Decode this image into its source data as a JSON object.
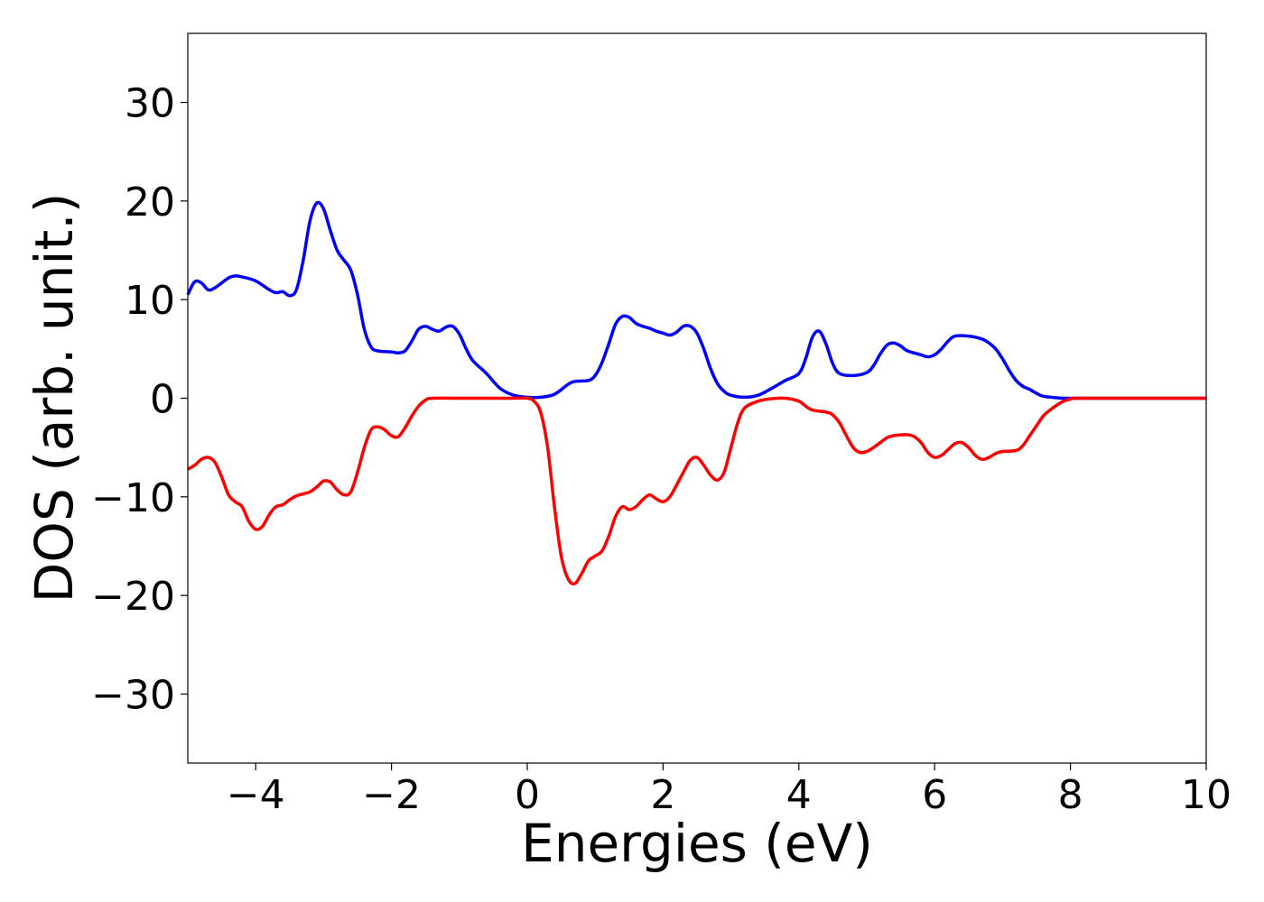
{
  "chart_data": {
    "type": "line",
    "xlabel": "Energies (eV)",
    "ylabel": "DOS (arb. unit.)",
    "xlim": [
      -5,
      10
    ],
    "ylim": [
      -37,
      37
    ],
    "grid": false,
    "x_ticks": [
      {
        "value": -4,
        "label": "−4"
      },
      {
        "value": -2,
        "label": "−2"
      },
      {
        "value": 0,
        "label": "0"
      },
      {
        "value": 2,
        "label": "2"
      },
      {
        "value": 4,
        "label": "4"
      },
      {
        "value": 6,
        "label": "6"
      },
      {
        "value": 8,
        "label": "8"
      },
      {
        "value": 10,
        "label": "10"
      }
    ],
    "y_ticks": [
      {
        "value": 30,
        "label": "30"
      },
      {
        "value": 20,
        "label": "20"
      },
      {
        "value": 10,
        "label": "10"
      },
      {
        "value": 0,
        "label": "0"
      },
      {
        "value": -10,
        "label": "−10"
      },
      {
        "value": -20,
        "label": "−20"
      },
      {
        "value": -30,
        "label": "−30"
      }
    ],
    "series": [
      {
        "color": "#0000ff",
        "points": [
          [
            -5.0,
            10.5
          ],
          [
            -4.9,
            11.8
          ],
          [
            -4.8,
            11.7
          ],
          [
            -4.7,
            11.0
          ],
          [
            -4.6,
            11.2
          ],
          [
            -4.4,
            12.2
          ],
          [
            -4.3,
            12.4
          ],
          [
            -4.2,
            12.3
          ],
          [
            -4.0,
            11.9
          ],
          [
            -3.8,
            11.0
          ],
          [
            -3.7,
            10.7
          ],
          [
            -3.6,
            10.8
          ],
          [
            -3.5,
            10.4
          ],
          [
            -3.4,
            11.0
          ],
          [
            -3.3,
            14.0
          ],
          [
            -3.2,
            18.0
          ],
          [
            -3.1,
            19.8
          ],
          [
            -3.0,
            19.2
          ],
          [
            -2.9,
            17.0
          ],
          [
            -2.8,
            15.0
          ],
          [
            -2.7,
            14.0
          ],
          [
            -2.6,
            13.0
          ],
          [
            -2.5,
            10.5
          ],
          [
            -2.4,
            7.0
          ],
          [
            -2.3,
            5.2
          ],
          [
            -2.2,
            4.8
          ],
          [
            -2.0,
            4.7
          ],
          [
            -1.9,
            4.6
          ],
          [
            -1.8,
            4.8
          ],
          [
            -1.7,
            5.8
          ],
          [
            -1.6,
            7.0
          ],
          [
            -1.5,
            7.3
          ],
          [
            -1.4,
            7.0
          ],
          [
            -1.3,
            6.8
          ],
          [
            -1.2,
            7.2
          ],
          [
            -1.1,
            7.3
          ],
          [
            -1.0,
            6.5
          ],
          [
            -0.9,
            5.0
          ],
          [
            -0.8,
            3.8
          ],
          [
            -0.6,
            2.5
          ],
          [
            -0.4,
            1.0
          ],
          [
            -0.2,
            0.3
          ],
          [
            0.0,
            0.1
          ],
          [
            0.2,
            0.1
          ],
          [
            0.4,
            0.4
          ],
          [
            0.6,
            1.4
          ],
          [
            0.7,
            1.7
          ],
          [
            0.9,
            1.8
          ],
          [
            1.0,
            2.3
          ],
          [
            1.1,
            3.6
          ],
          [
            1.2,
            5.5
          ],
          [
            1.3,
            7.5
          ],
          [
            1.4,
            8.3
          ],
          [
            1.5,
            8.2
          ],
          [
            1.6,
            7.6
          ],
          [
            1.7,
            7.3
          ],
          [
            1.8,
            7.1
          ],
          [
            1.9,
            6.8
          ],
          [
            2.0,
            6.6
          ],
          [
            2.1,
            6.4
          ],
          [
            2.2,
            6.7
          ],
          [
            2.3,
            7.3
          ],
          [
            2.4,
            7.3
          ],
          [
            2.5,
            6.6
          ],
          [
            2.6,
            5.0
          ],
          [
            2.7,
            3.0
          ],
          [
            2.8,
            1.5
          ],
          [
            2.9,
            0.7
          ],
          [
            3.0,
            0.3
          ],
          [
            3.2,
            0.1
          ],
          [
            3.4,
            0.3
          ],
          [
            3.6,
            1.0
          ],
          [
            3.8,
            1.8
          ],
          [
            4.0,
            2.5
          ],
          [
            4.1,
            4.0
          ],
          [
            4.2,
            6.2
          ],
          [
            4.3,
            6.8
          ],
          [
            4.4,
            5.5
          ],
          [
            4.5,
            3.5
          ],
          [
            4.6,
            2.5
          ],
          [
            4.8,
            2.3
          ],
          [
            5.0,
            2.6
          ],
          [
            5.1,
            3.3
          ],
          [
            5.2,
            4.5
          ],
          [
            5.3,
            5.4
          ],
          [
            5.4,
            5.6
          ],
          [
            5.5,
            5.3
          ],
          [
            5.6,
            4.8
          ],
          [
            5.8,
            4.4
          ],
          [
            5.9,
            4.2
          ],
          [
            6.0,
            4.4
          ],
          [
            6.1,
            5.0
          ],
          [
            6.2,
            5.8
          ],
          [
            6.3,
            6.3
          ],
          [
            6.5,
            6.3
          ],
          [
            6.7,
            6.0
          ],
          [
            6.8,
            5.6
          ],
          [
            6.9,
            5.0
          ],
          [
            7.0,
            4.0
          ],
          [
            7.1,
            2.8
          ],
          [
            7.2,
            1.8
          ],
          [
            7.3,
            1.2
          ],
          [
            7.4,
            0.9
          ],
          [
            7.5,
            0.5
          ],
          [
            7.6,
            0.2
          ],
          [
            7.8,
            0.05
          ],
          [
            8.0,
            0.0
          ],
          [
            9.0,
            0.0
          ],
          [
            10.0,
            0.0
          ]
        ]
      },
      {
        "color": "#ff0000",
        "points": [
          [
            -5.0,
            -7.2
          ],
          [
            -4.9,
            -6.8
          ],
          [
            -4.8,
            -6.2
          ],
          [
            -4.7,
            -6.0
          ],
          [
            -4.6,
            -6.5
          ],
          [
            -4.5,
            -8.0
          ],
          [
            -4.4,
            -9.8
          ],
          [
            -4.3,
            -10.5
          ],
          [
            -4.2,
            -11.0
          ],
          [
            -4.1,
            -12.5
          ],
          [
            -4.0,
            -13.3
          ],
          [
            -3.9,
            -13.0
          ],
          [
            -3.8,
            -11.8
          ],
          [
            -3.7,
            -11.0
          ],
          [
            -3.6,
            -10.8
          ],
          [
            -3.5,
            -10.3
          ],
          [
            -3.4,
            -9.9
          ],
          [
            -3.3,
            -9.7
          ],
          [
            -3.2,
            -9.5
          ],
          [
            -3.1,
            -9.0
          ],
          [
            -3.0,
            -8.4
          ],
          [
            -2.9,
            -8.5
          ],
          [
            -2.8,
            -9.3
          ],
          [
            -2.7,
            -9.8
          ],
          [
            -2.6,
            -9.5
          ],
          [
            -2.5,
            -7.5
          ],
          [
            -2.4,
            -5.0
          ],
          [
            -2.3,
            -3.2
          ],
          [
            -2.2,
            -2.9
          ],
          [
            -2.1,
            -3.2
          ],
          [
            -2.0,
            -3.8
          ],
          [
            -1.9,
            -3.9
          ],
          [
            -1.8,
            -3.0
          ],
          [
            -1.7,
            -1.8
          ],
          [
            -1.6,
            -0.8
          ],
          [
            -1.5,
            -0.2
          ],
          [
            -1.4,
            0.0
          ],
          [
            -1.0,
            0.0
          ],
          [
            -0.2,
            0.0
          ],
          [
            0.0,
            0.0
          ],
          [
            0.1,
            -0.3
          ],
          [
            0.2,
            -1.5
          ],
          [
            0.3,
            -5.0
          ],
          [
            0.4,
            -11.0
          ],
          [
            0.5,
            -16.0
          ],
          [
            0.6,
            -18.3
          ],
          [
            0.7,
            -18.8
          ],
          [
            0.8,
            -17.8
          ],
          [
            0.9,
            -16.5
          ],
          [
            1.0,
            -16.0
          ],
          [
            1.1,
            -15.5
          ],
          [
            1.2,
            -14.0
          ],
          [
            1.3,
            -12.0
          ],
          [
            1.4,
            -11.0
          ],
          [
            1.5,
            -11.3
          ],
          [
            1.6,
            -11.0
          ],
          [
            1.7,
            -10.3
          ],
          [
            1.8,
            -9.8
          ],
          [
            1.9,
            -10.2
          ],
          [
            2.0,
            -10.5
          ],
          [
            2.1,
            -10.0
          ],
          [
            2.2,
            -8.8
          ],
          [
            2.3,
            -7.5
          ],
          [
            2.4,
            -6.3
          ],
          [
            2.5,
            -6.0
          ],
          [
            2.6,
            -6.8
          ],
          [
            2.7,
            -7.8
          ],
          [
            2.8,
            -8.3
          ],
          [
            2.9,
            -7.5
          ],
          [
            3.0,
            -5.0
          ],
          [
            3.1,
            -2.5
          ],
          [
            3.2,
            -1.0
          ],
          [
            3.4,
            -0.3
          ],
          [
            3.6,
            -0.05
          ],
          [
            3.8,
            0.0
          ],
          [
            4.0,
            -0.3
          ],
          [
            4.1,
            -0.8
          ],
          [
            4.2,
            -1.2
          ],
          [
            4.4,
            -1.4
          ],
          [
            4.5,
            -1.7
          ],
          [
            4.6,
            -2.5
          ],
          [
            4.7,
            -3.8
          ],
          [
            4.8,
            -5.0
          ],
          [
            4.9,
            -5.5
          ],
          [
            5.0,
            -5.4
          ],
          [
            5.1,
            -5.0
          ],
          [
            5.2,
            -4.5
          ],
          [
            5.3,
            -4.0
          ],
          [
            5.4,
            -3.8
          ],
          [
            5.6,
            -3.7
          ],
          [
            5.7,
            -3.9
          ],
          [
            5.8,
            -4.5
          ],
          [
            5.9,
            -5.5
          ],
          [
            6.0,
            -6.0
          ],
          [
            6.1,
            -5.8
          ],
          [
            6.2,
            -5.2
          ],
          [
            6.3,
            -4.6
          ],
          [
            6.4,
            -4.5
          ],
          [
            6.5,
            -5.0
          ],
          [
            6.6,
            -5.8
          ],
          [
            6.7,
            -6.2
          ],
          [
            6.8,
            -6.0
          ],
          [
            6.9,
            -5.6
          ],
          [
            7.0,
            -5.4
          ],
          [
            7.2,
            -5.3
          ],
          [
            7.3,
            -4.8
          ],
          [
            7.4,
            -3.8
          ],
          [
            7.5,
            -2.8
          ],
          [
            7.6,
            -1.8
          ],
          [
            7.7,
            -1.2
          ],
          [
            7.8,
            -0.7
          ],
          [
            7.9,
            -0.3
          ],
          [
            8.0,
            -0.1
          ],
          [
            8.1,
            0.0
          ],
          [
            9.0,
            0.0
          ],
          [
            10.0,
            0.0
          ]
        ]
      }
    ]
  }
}
